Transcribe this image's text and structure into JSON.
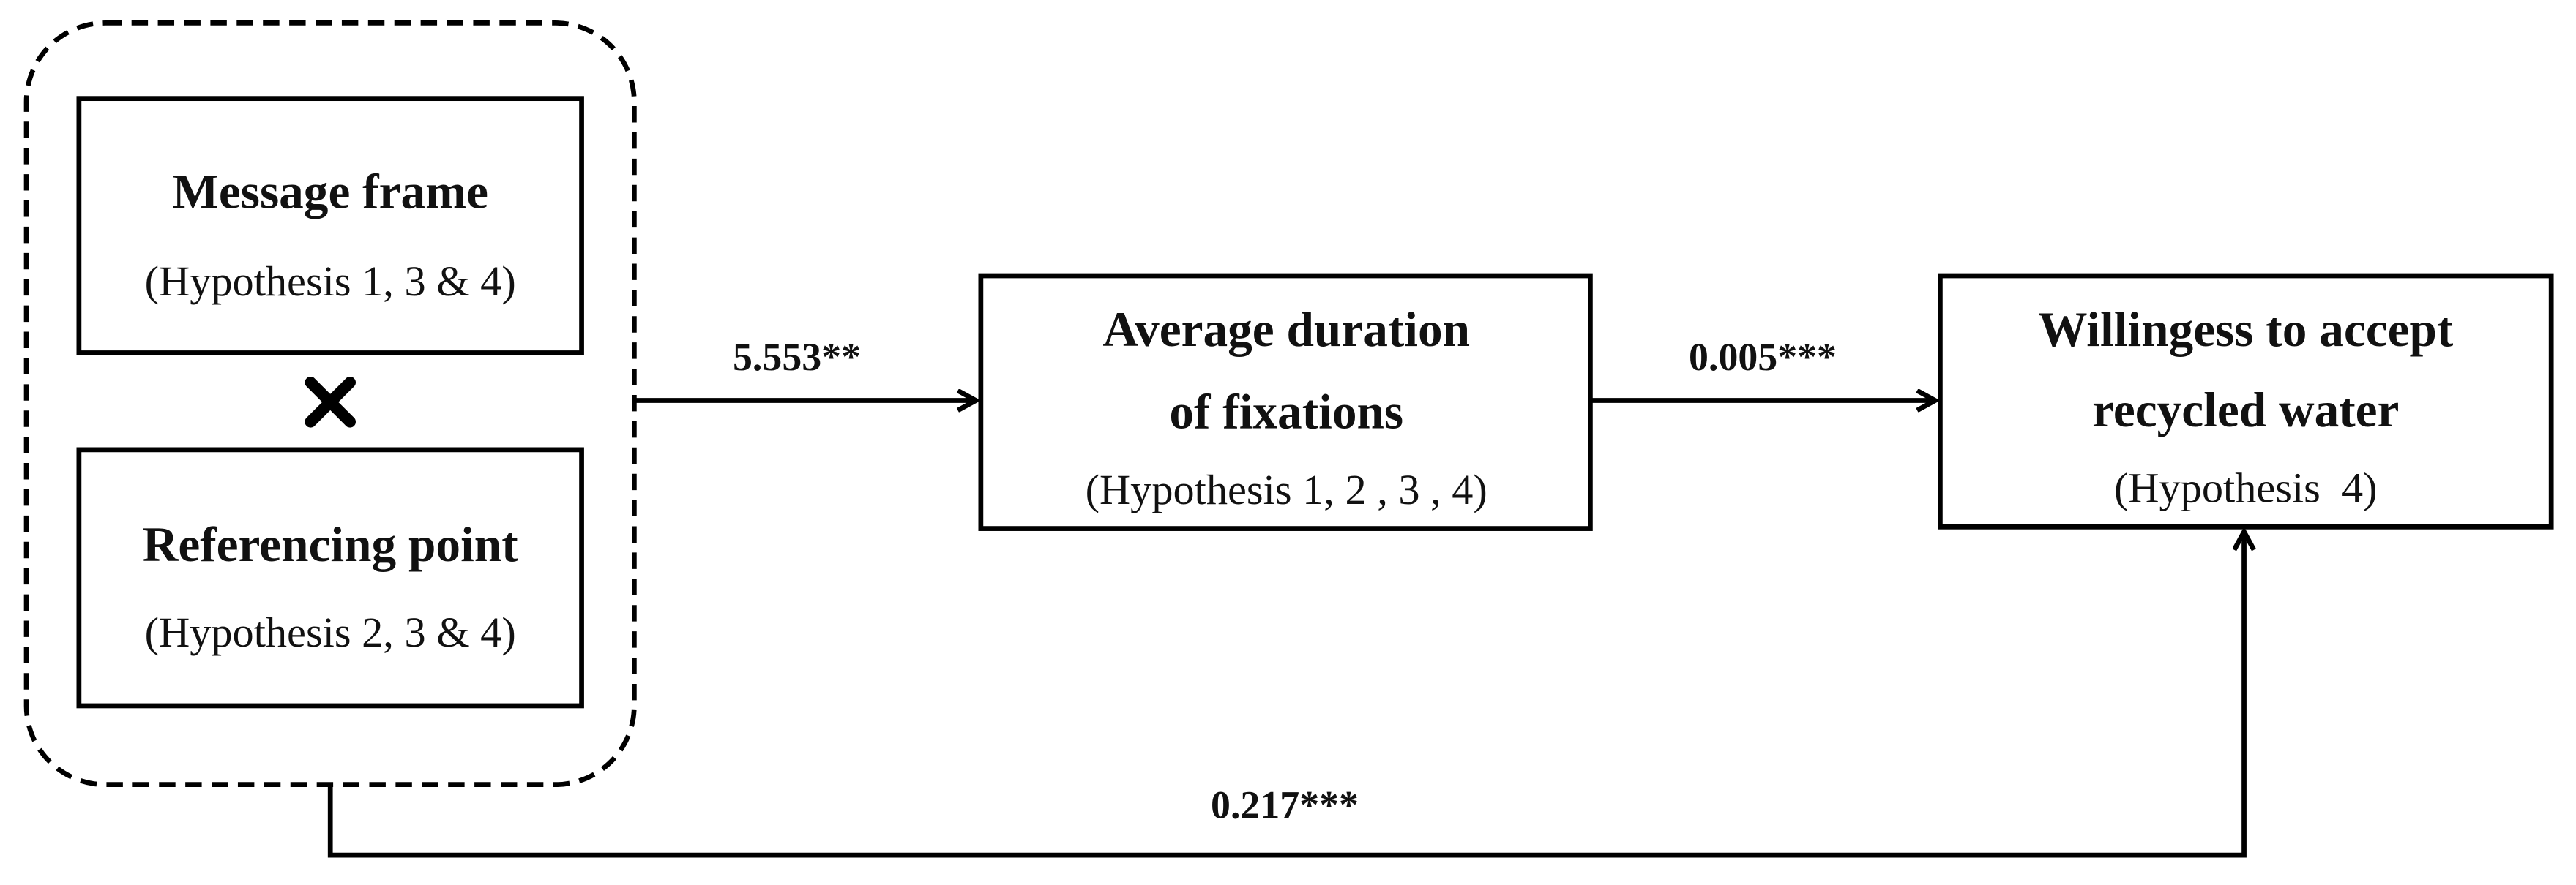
{
  "nodes": [
    {
      "title": "Message frame",
      "subtitle": "(Hypothesis 1, 3 & 4)"
    },
    {
      "title": "Referencing point",
      "subtitle": "(Hypothesis 2, 3 & 4)"
    },
    {
      "title_lines": [
        "Average duration",
        "of fixations"
      ],
      "subtitle": "(Hypothesis 1, 2 , 3 , 4)"
    },
    {
      "title_lines": [
        "Willingess to accept",
        "recycled water"
      ],
      "subtitle": "(Hypothesis  4)"
    }
  ],
  "edges": [
    {
      "label": "5.553**"
    },
    {
      "label": "0.005***"
    },
    {
      "label": "0.217***"
    }
  ]
}
